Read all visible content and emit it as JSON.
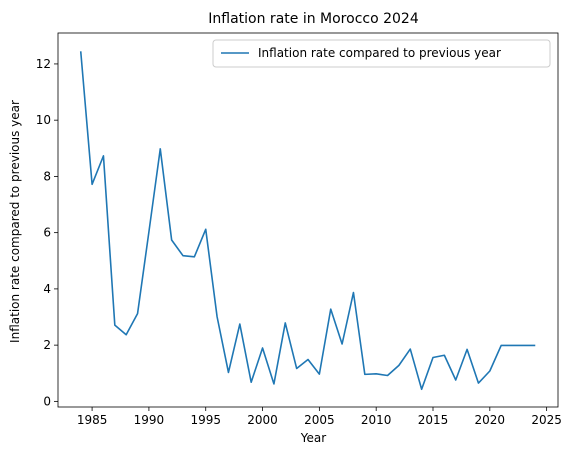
{
  "chart_data": {
    "type": "line",
    "title": "Inflation rate in Morocco 2024",
    "xlabel": "Year",
    "ylabel": "Inflation rate compared to previous year",
    "xlim": [
      1982,
      2026
    ],
    "ylim": [
      -0.2,
      13.1
    ],
    "xticks": [
      1985,
      1990,
      1995,
      2000,
      2005,
      2010,
      2015,
      2020,
      2025
    ],
    "yticks": [
      0,
      2,
      4,
      6,
      8,
      10,
      12
    ],
    "grid": false,
    "legend_position": "top-right",
    "series": [
      {
        "name": "Inflation rate compared to previous year",
        "color": "#1f77b4",
        "x": [
          1984,
          1985,
          1986,
          1987,
          1988,
          1989,
          1990,
          1991,
          1992,
          1993,
          1994,
          1995,
          1996,
          1997,
          1998,
          1999,
          2000,
          2001,
          2002,
          2003,
          2004,
          2005,
          2006,
          2007,
          2008,
          2009,
          2010,
          2011,
          2012,
          2013,
          2014,
          2015,
          2016,
          2017,
          2018,
          2019,
          2020,
          2021,
          2022,
          2023,
          2024
        ],
        "values": [
          12.45,
          7.72,
          8.73,
          2.71,
          2.37,
          3.12,
          6.03,
          8.98,
          5.74,
          5.18,
          5.14,
          6.12,
          3.01,
          1.03,
          2.75,
          0.68,
          1.9,
          0.62,
          2.79,
          1.17,
          1.49,
          0.97,
          3.28,
          2.04,
          3.87,
          0.96,
          0.98,
          0.92,
          1.28,
          1.86,
          0.43,
          1.56,
          1.64,
          0.76,
          1.85,
          0.65,
          1.08,
          1.99,
          1.99,
          1.99,
          1.99
        ]
      }
    ]
  }
}
